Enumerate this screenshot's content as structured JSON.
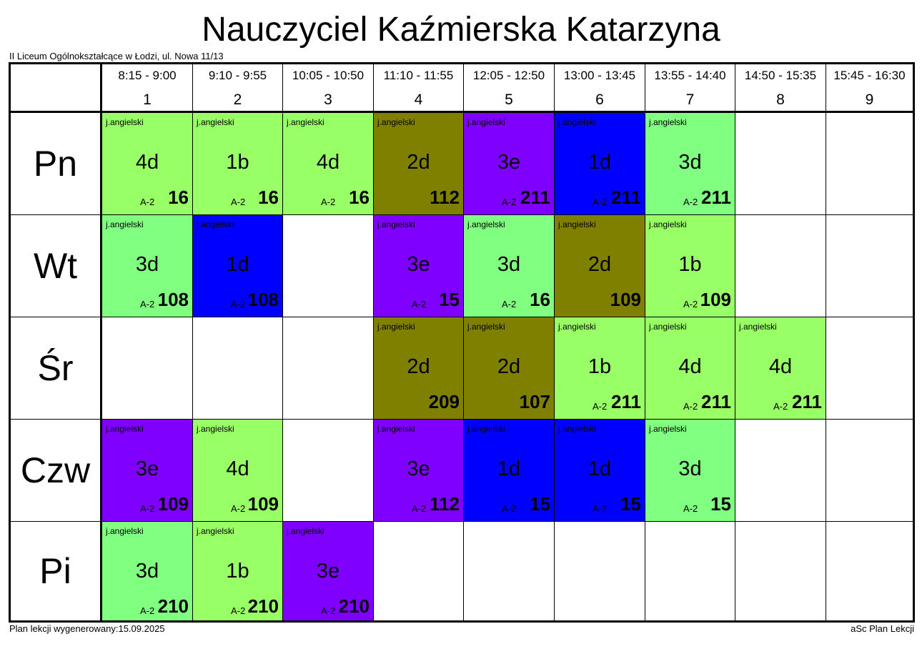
{
  "title": "Nauczyciel Kaźmierska Katarzyna",
  "school": "II Liceum Ogólnokształcące w Łodzi, ul. Nowa 11/13",
  "footer": {
    "generated": "Plan lekcji wygenerowany:15.09.2025",
    "credit": "aSc Plan Lekcji"
  },
  "colors": {
    "light-green": "#99ff66",
    "mint-green": "#80ff80",
    "olive": "#808000",
    "purple": "#8000ff",
    "blue": "#0000ff"
  },
  "periods": [
    {
      "num": "1",
      "time": "8:15 - 9:00"
    },
    {
      "num": "2",
      "time": "9:10 - 9:55"
    },
    {
      "num": "3",
      "time": "10:05 - 10:50"
    },
    {
      "num": "4",
      "time": "11:10 - 11:55"
    },
    {
      "num": "5",
      "time": "12:05 - 12:50"
    },
    {
      "num": "6",
      "time": "13:00 - 13:45"
    },
    {
      "num": "7",
      "time": "13:55 - 14:40"
    },
    {
      "num": "8",
      "time": "14:50 - 15:35"
    },
    {
      "num": "9",
      "time": "15:45 - 16:30"
    }
  ],
  "days": [
    {
      "name": "Pn",
      "lessons": [
        {
          "subject": "j.angielski",
          "class": "4d",
          "group": "A-2",
          "room": "16",
          "color": "#99ff66"
        },
        {
          "subject": "j.angielski",
          "class": "1b",
          "group": "A-2",
          "room": "16",
          "color": "#99ff66"
        },
        {
          "subject": "j.angielski",
          "class": "4d",
          "group": "A-2",
          "room": "16",
          "color": "#99ff66"
        },
        {
          "subject": "j.angielski",
          "class": "2d",
          "group": "",
          "room": "112",
          "color": "#808000"
        },
        {
          "subject": "j.angielski",
          "class": "3e",
          "group": "A-2",
          "room": "211",
          "color": "#8000ff"
        },
        {
          "subject": "j.angielski",
          "class": "1d",
          "group": "A-2",
          "room": "211",
          "color": "#0000ff"
        },
        {
          "subject": "j.angielski",
          "class": "3d",
          "group": "A-2",
          "room": "211",
          "color": "#80ff80"
        },
        null,
        null
      ]
    },
    {
      "name": "Wt",
      "lessons": [
        {
          "subject": "j.angielski",
          "class": "3d",
          "group": "A-2",
          "room": "108",
          "color": "#80ff80"
        },
        {
          "subject": "j.angielski",
          "class": "1d",
          "group": "A-2",
          "room": "108",
          "color": "#0000ff"
        },
        null,
        {
          "subject": "j.angielski",
          "class": "3e",
          "group": "A-2",
          "room": "15",
          "color": "#8000ff"
        },
        {
          "subject": "j.angielski",
          "class": "3d",
          "group": "A-2",
          "room": "16",
          "color": "#80ff80"
        },
        {
          "subject": "j.angielski",
          "class": "2d",
          "group": "",
          "room": "109",
          "color": "#808000"
        },
        {
          "subject": "j.angielski",
          "class": "1b",
          "group": "A-2",
          "room": "109",
          "color": "#99ff66"
        },
        null,
        null
      ]
    },
    {
      "name": "Śr",
      "lessons": [
        null,
        null,
        null,
        {
          "subject": "j.angielski",
          "class": "2d",
          "group": "",
          "room": "209",
          "color": "#808000"
        },
        {
          "subject": "j.angielski",
          "class": "2d",
          "group": "",
          "room": "107",
          "color": "#808000"
        },
        {
          "subject": "j.angielski",
          "class": "1b",
          "group": "A-2",
          "room": "211",
          "color": "#99ff66"
        },
        {
          "subject": "j.angielski",
          "class": "4d",
          "group": "A-2",
          "room": "211",
          "color": "#99ff66"
        },
        {
          "subject": "j.angielski",
          "class": "4d",
          "group": "A-2",
          "room": "211",
          "color": "#99ff66"
        },
        null
      ]
    },
    {
      "name": "Czw",
      "lessons": [
        {
          "subject": "j.angielski",
          "class": "3e",
          "group": "A-2",
          "room": "109",
          "color": "#8000ff"
        },
        {
          "subject": "j.angielski",
          "class": "4d",
          "group": "A-2",
          "room": "109",
          "color": "#99ff66"
        },
        null,
        {
          "subject": "j.angielski",
          "class": "3e",
          "group": "A-2",
          "room": "112",
          "color": "#8000ff"
        },
        {
          "subject": "j.angielski",
          "class": "1d",
          "group": "A-2",
          "room": "15",
          "color": "#0000ff"
        },
        {
          "subject": "j.angielski",
          "class": "1d",
          "group": "A-2",
          "room": "15",
          "color": "#0000ff"
        },
        {
          "subject": "j.angielski",
          "class": "3d",
          "group": "A-2",
          "room": "15",
          "color": "#80ff80"
        },
        null,
        null
      ]
    },
    {
      "name": "Pi",
      "lessons": [
        {
          "subject": "j.angielski",
          "class": "3d",
          "group": "A-2",
          "room": "210",
          "color": "#80ff80"
        },
        {
          "subject": "j.angielski",
          "class": "1b",
          "group": "A-2",
          "room": "210",
          "color": "#99ff66"
        },
        {
          "subject": "j.angielski",
          "class": "3e",
          "group": "A-2",
          "room": "210",
          "color": "#8000ff"
        },
        null,
        null,
        null,
        null,
        null,
        null
      ]
    }
  ]
}
